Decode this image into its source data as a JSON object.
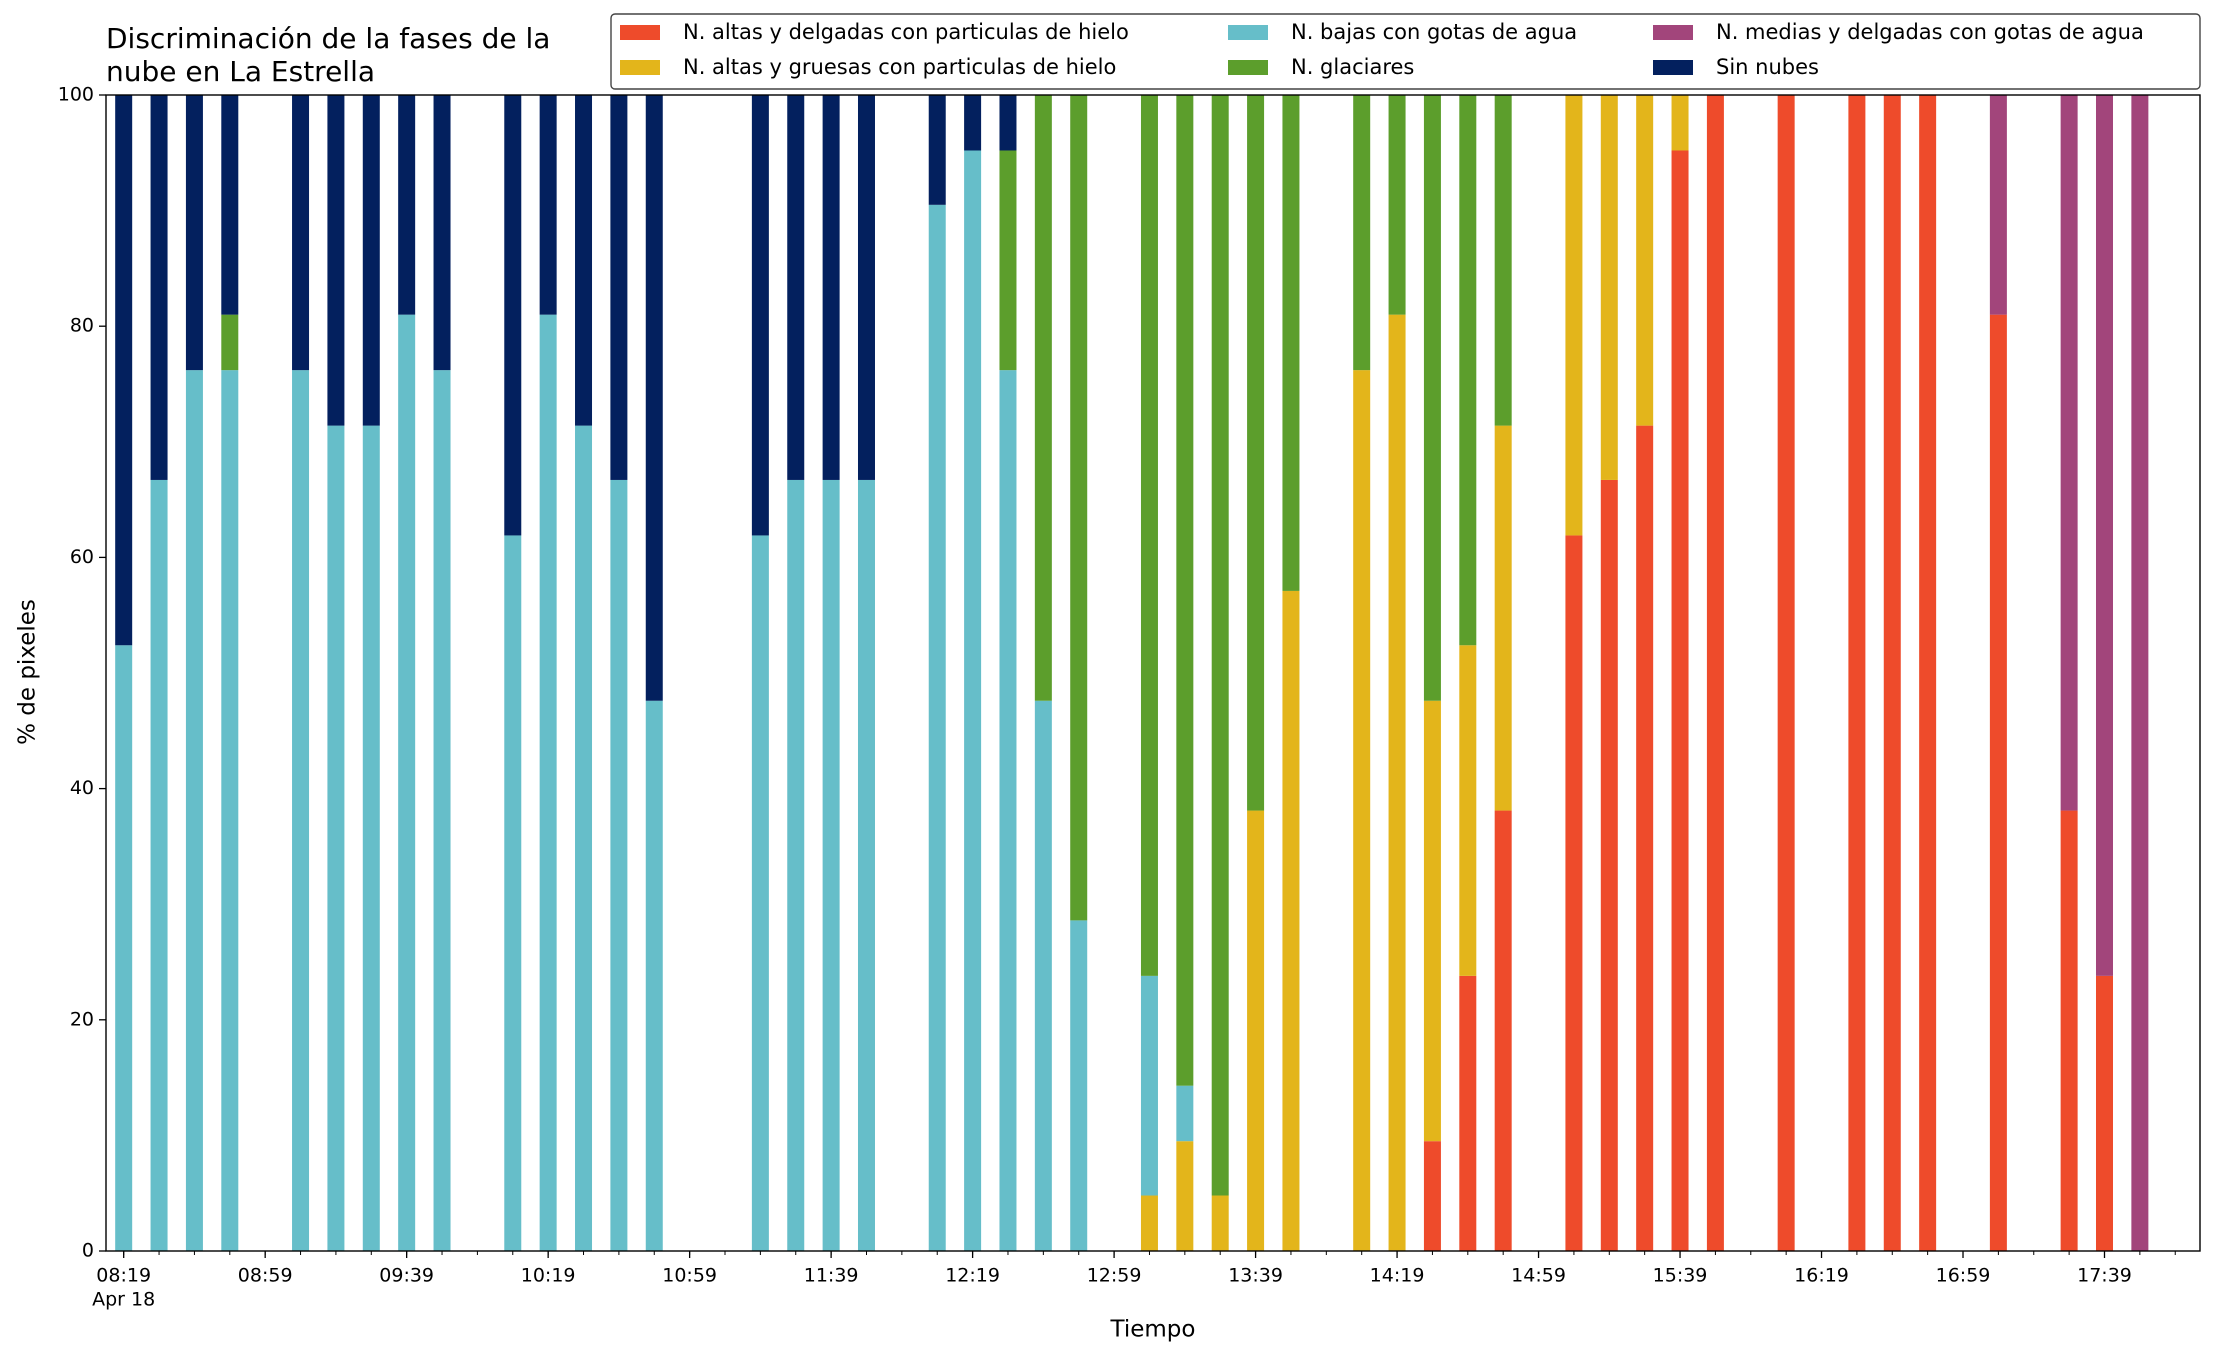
{
  "chart_data": {
    "type": "stacked_bar",
    "title": [
      "Discriminación de la fases de la",
      "nube en La Estrella"
    ],
    "x_label": "Tiempo",
    "y_label": "% de pixeles",
    "x_date_label": "Apr 18",
    "x": [
      "08:19",
      "08:29",
      "08:39",
      "08:49",
      "09:09",
      "09:19",
      "09:29",
      "09:39",
      "09:49",
      "10:09",
      "10:19",
      "10:29",
      "10:39",
      "10:49",
      "11:19",
      "11:29",
      "11:39",
      "11:49",
      "12:09",
      "12:19",
      "12:29",
      "12:39",
      "12:49",
      "13:09",
      "13:19",
      "13:29",
      "13:39",
      "13:49",
      "14:09",
      "14:19",
      "14:29",
      "14:39",
      "14:49",
      "15:09",
      "15:19",
      "15:29",
      "15:39",
      "15:49",
      "16:09",
      "16:29",
      "16:39",
      "16:49",
      "17:09",
      "17:29",
      "17:39",
      "17:49"
    ],
    "xlim": [
      "08:14",
      "18:06"
    ],
    "xticks": [
      "08:19",
      "08:59",
      "09:39",
      "10:19",
      "10:59",
      "11:39",
      "12:19",
      "12:59",
      "13:39",
      "14:19",
      "14:59",
      "15:39",
      "16:19",
      "16:59",
      "17:39"
    ],
    "x_minor_tick_minutes": 10,
    "ylim": [
      0,
      100
    ],
    "yticks": [
      0,
      20,
      40,
      60,
      80,
      100
    ],
    "grid": false,
    "legend": "upper right",
    "series": [
      {
        "name": "N. altas y delgadas con particulas de hielo",
        "color": "#ee4b2b",
        "values": [
          0,
          0,
          0,
          0,
          0,
          0,
          0,
          0,
          0,
          0,
          0,
          0,
          0,
          0,
          0,
          0,
          0,
          0,
          0,
          0,
          0,
          0,
          0,
          0,
          0,
          0,
          0,
          0,
          0,
          0,
          9.5,
          23.8,
          38.1,
          61.9,
          66.7,
          71.4,
          95.2,
          100,
          100,
          100,
          100,
          100,
          81.0,
          38.1,
          23.8,
          0
        ]
      },
      {
        "name": "N. altas y gruesas con particulas de hielo",
        "color": "#e3b51b",
        "values": [
          0,
          0,
          0,
          0,
          0,
          0,
          0,
          0,
          0,
          0,
          0,
          0,
          0,
          0,
          0,
          0,
          0,
          0,
          0,
          0,
          0,
          0,
          0,
          4.8,
          9.5,
          4.8,
          38.1,
          57.1,
          76.2,
          81.0,
          38.1,
          28.6,
          33.3,
          38.1,
          33.3,
          28.6,
          4.8,
          0,
          0,
          0,
          0,
          0,
          0,
          0,
          0,
          0
        ]
      },
      {
        "name": "N. bajas con gotas de agua",
        "color": "#66bec9",
        "values": [
          52.4,
          66.7,
          76.2,
          76.2,
          76.2,
          71.4,
          71.4,
          81.0,
          76.2,
          61.9,
          81.0,
          71.4,
          66.7,
          47.6,
          61.9,
          66.7,
          66.7,
          66.7,
          90.5,
          95.2,
          76.2,
          47.6,
          28.6,
          19.0,
          4.8,
          0,
          0,
          0,
          0,
          0,
          0,
          0,
          0,
          0,
          0,
          0,
          0,
          0,
          0,
          0,
          0,
          0,
          0,
          0,
          0,
          0
        ]
      },
      {
        "name": "N. glaciares",
        "color": "#5c9e2c",
        "values": [
          0,
          0,
          0,
          4.8,
          0,
          0,
          0,
          0,
          0,
          0,
          0,
          0,
          0,
          0,
          0,
          0,
          0,
          0,
          0,
          0,
          19.0,
          52.4,
          71.4,
          76.2,
          85.7,
          95.2,
          61.9,
          42.9,
          23.8,
          19.0,
          52.4,
          47.6,
          28.6,
          0,
          0,
          0,
          0,
          0,
          0,
          0,
          0,
          0,
          0,
          0,
          0,
          0
        ]
      },
      {
        "name": "N. medias y delgadas con gotas de agua",
        "color": "#a2457b",
        "values": [
          0,
          0,
          0,
          0,
          0,
          0,
          0,
          0,
          0,
          0,
          0,
          0,
          0,
          0,
          0,
          0,
          0,
          0,
          0,
          0,
          0,
          0,
          0,
          0,
          0,
          0,
          0,
          0,
          0,
          0,
          0,
          0,
          0,
          0,
          0,
          0,
          0,
          0,
          0,
          0,
          0,
          0,
          19.0,
          61.9,
          76.2,
          100
        ]
      },
      {
        "name": "Sin nubes",
        "color": "#03205e",
        "values": [
          47.6,
          33.3,
          23.8,
          19.0,
          23.8,
          28.6,
          28.6,
          19.0,
          23.8,
          38.1,
          19.0,
          28.6,
          33.3,
          52.4,
          38.1,
          33.3,
          33.3,
          33.3,
          9.5,
          4.8,
          4.8,
          0,
          0,
          0,
          0,
          0,
          0,
          0,
          0,
          0,
          0,
          0,
          0,
          0,
          0,
          0,
          0,
          0,
          0,
          0,
          0,
          0,
          0,
          0,
          0,
          0
        ]
      }
    ]
  }
}
